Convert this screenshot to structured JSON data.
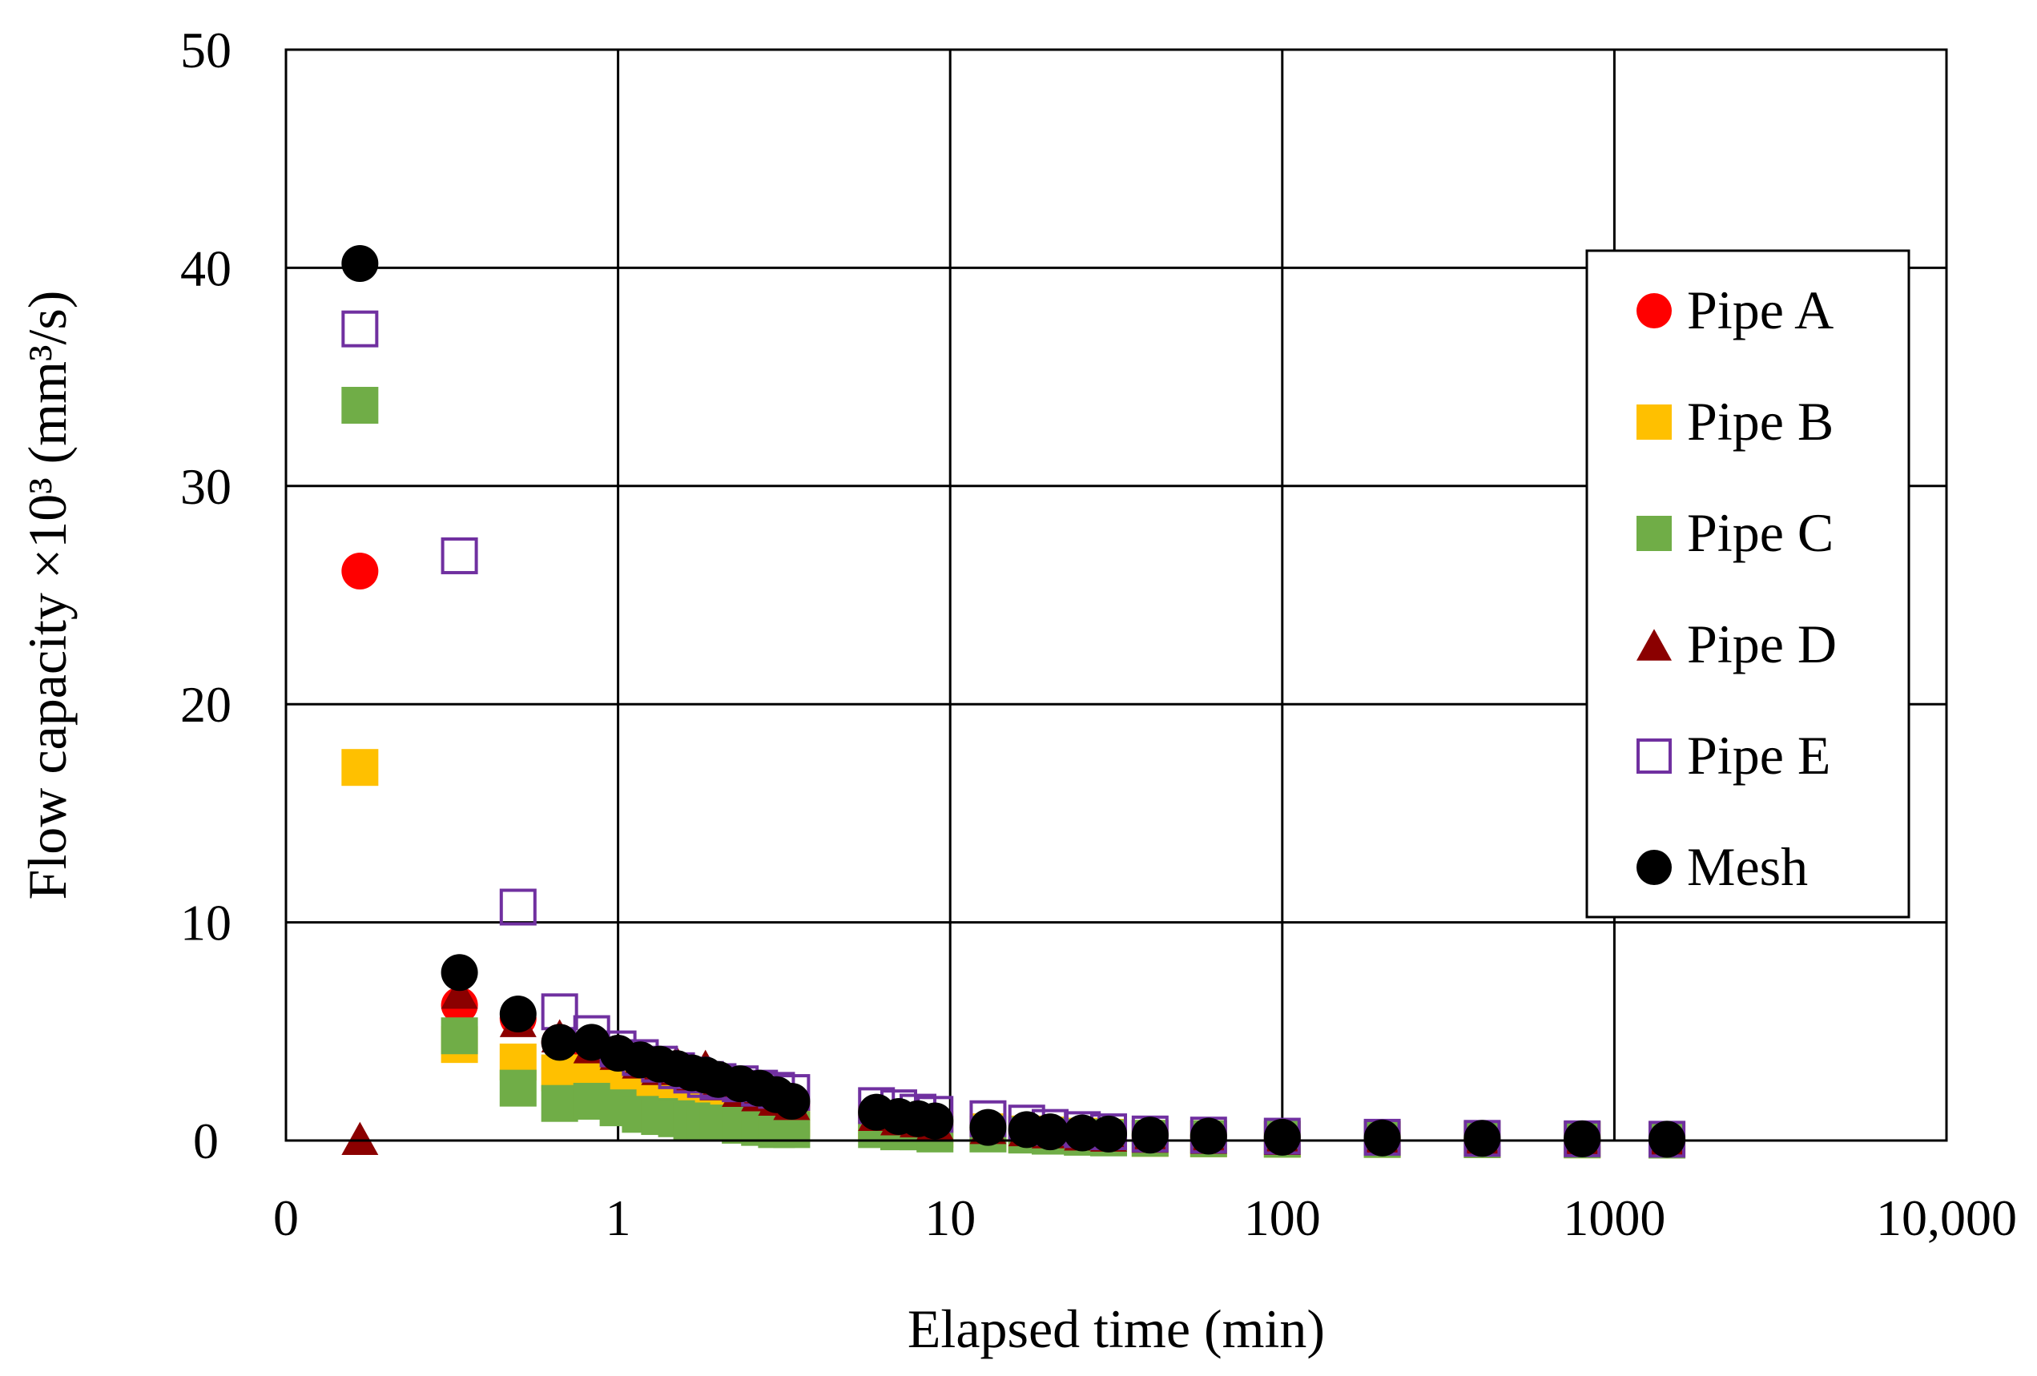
{
  "chart_data": {
    "type": "scatter",
    "title": "",
    "xlabel": "Elapsed time (min)",
    "ylabel": "Flow capacity  ×10³  (mm³/s)",
    "x_scale": "log",
    "x_tick_values": [
      0.1,
      1,
      10,
      100,
      1000,
      10000
    ],
    "x_tick_labels": [
      "0",
      "1",
      "10",
      "100",
      "1000",
      "10,000"
    ],
    "xlim": [
      0.1,
      10000
    ],
    "ylim": [
      0,
      50
    ],
    "y_ticks": [
      0,
      10,
      20,
      30,
      40,
      50
    ],
    "grid": true,
    "legend_position": "right",
    "series": [
      {
        "name": "Pipe A",
        "marker": "circle",
        "color": "#ff0000",
        "filled": true,
        "points": [
          [
            0.167,
            26.1
          ],
          [
            0.333,
            6.2
          ],
          [
            0.5,
            5.6
          ],
          [
            0.667,
            4.5
          ],
          [
            0.833,
            4.2
          ],
          [
            1.0,
            3.8
          ],
          [
            1.167,
            3.4
          ],
          [
            1.333,
            3.1
          ],
          [
            1.5,
            2.9
          ],
          [
            1.667,
            2.7
          ],
          [
            1.833,
            2.5
          ],
          [
            2.0,
            2.3
          ],
          [
            2.333,
            2.1
          ],
          [
            2.667,
            1.9
          ],
          [
            3.0,
            1.8
          ],
          [
            3.333,
            1.6
          ],
          [
            6.0,
            1.1
          ],
          [
            7.0,
            0.9
          ],
          [
            8.0,
            0.8
          ],
          [
            9.0,
            0.7
          ],
          [
            13.0,
            0.5
          ],
          [
            17.0,
            0.4
          ],
          [
            20.0,
            0.3
          ],
          [
            25.0,
            0.25
          ],
          [
            30.0,
            0.2
          ],
          [
            40.0,
            0.15
          ],
          [
            60.0,
            0.1
          ],
          [
            100.0,
            0.08
          ],
          [
            200.0,
            0.06
          ],
          [
            400.0,
            0.05
          ],
          [
            800.0,
            0.04
          ],
          [
            1440.0,
            0.03
          ]
        ]
      },
      {
        "name": "Pipe B",
        "marker": "square",
        "color": "#ffc000",
        "filled": true,
        "points": [
          [
            0.167,
            17.1
          ],
          [
            0.333,
            4.4
          ],
          [
            0.5,
            3.6
          ],
          [
            0.667,
            3.1
          ],
          [
            0.833,
            2.8
          ],
          [
            1.0,
            2.6
          ],
          [
            1.167,
            2.3
          ],
          [
            1.333,
            2.1
          ],
          [
            1.5,
            1.9
          ],
          [
            1.667,
            1.8
          ],
          [
            1.833,
            1.6
          ],
          [
            2.0,
            1.5
          ],
          [
            2.333,
            1.3
          ],
          [
            2.667,
            1.2
          ],
          [
            3.0,
            1.1
          ],
          [
            3.333,
            1.0
          ],
          [
            6.0,
            0.8
          ],
          [
            7.0,
            0.7
          ],
          [
            8.0,
            0.6
          ],
          [
            9.0,
            0.5
          ],
          [
            13.0,
            0.4
          ],
          [
            17.0,
            0.3
          ],
          [
            20.0,
            0.25
          ],
          [
            25.0,
            0.2
          ],
          [
            30.0,
            0.15
          ],
          [
            40.0,
            0.1
          ],
          [
            60.0,
            0.08
          ],
          [
            100.0,
            0.06
          ],
          [
            200.0,
            0.05
          ],
          [
            400.0,
            0.04
          ],
          [
            800.0,
            0.03
          ],
          [
            1440.0,
            0.02
          ]
        ]
      },
      {
        "name": "Pipe C",
        "marker": "square",
        "color": "#70ad47",
        "filled": true,
        "points": [
          [
            0.167,
            33.7
          ],
          [
            0.333,
            4.8
          ],
          [
            0.5,
            2.4
          ],
          [
            0.667,
            1.7
          ],
          [
            0.833,
            1.8
          ],
          [
            1.0,
            1.5
          ],
          [
            1.167,
            1.2
          ],
          [
            1.333,
            1.1
          ],
          [
            1.5,
            1.0
          ],
          [
            1.667,
            0.9
          ],
          [
            1.833,
            0.8
          ],
          [
            2.0,
            0.8
          ],
          [
            2.333,
            0.7
          ],
          [
            2.667,
            0.6
          ],
          [
            3.0,
            0.5
          ],
          [
            3.333,
            0.5
          ],
          [
            6.0,
            0.5
          ],
          [
            7.0,
            0.4
          ],
          [
            8.0,
            0.4
          ],
          [
            9.0,
            0.3
          ],
          [
            13.0,
            0.3
          ],
          [
            17.0,
            0.25
          ],
          [
            20.0,
            0.2
          ],
          [
            25.0,
            0.15
          ],
          [
            30.0,
            0.12
          ],
          [
            40.0,
            0.1
          ],
          [
            60.0,
            0.08
          ],
          [
            100.0,
            0.06
          ],
          [
            200.0,
            0.05
          ],
          [
            400.0,
            0.04
          ],
          [
            800.0,
            0.03
          ],
          [
            1440.0,
            0.02
          ]
        ]
      },
      {
        "name": "Pipe D",
        "marker": "triangle",
        "color": "#8b0000",
        "filled": true,
        "points": [
          [
            0.167,
            0.1
          ],
          [
            0.333,
            6.8
          ],
          [
            0.5,
            5.5
          ],
          [
            0.667,
            4.8
          ],
          [
            0.833,
            4.3
          ],
          [
            1.0,
            4.0
          ],
          [
            1.167,
            3.6
          ],
          [
            1.333,
            3.3
          ],
          [
            1.5,
            3.6
          ],
          [
            1.667,
            3.0
          ],
          [
            1.833,
            3.4
          ],
          [
            2.0,
            2.6
          ],
          [
            2.333,
            2.3
          ],
          [
            2.667,
            2.1
          ],
          [
            3.0,
            1.9
          ],
          [
            3.333,
            1.7
          ],
          [
            6.0,
            1.2
          ],
          [
            7.0,
            1.0
          ],
          [
            8.0,
            0.9
          ],
          [
            9.0,
            0.8
          ],
          [
            13.0,
            0.6
          ],
          [
            17.0,
            0.5
          ],
          [
            20.0,
            0.4
          ],
          [
            25.0,
            0.3
          ],
          [
            30.0,
            0.25
          ],
          [
            40.0,
            0.2
          ],
          [
            60.0,
            0.15
          ],
          [
            100.0,
            0.1
          ],
          [
            200.0,
            0.08
          ],
          [
            400.0,
            0.06
          ],
          [
            800.0,
            0.05
          ],
          [
            1440.0,
            0.04
          ]
        ]
      },
      {
        "name": "Pipe E",
        "marker": "square",
        "color": "#7030a0",
        "filled": false,
        "points": [
          [
            0.167,
            37.2
          ],
          [
            0.333,
            26.8
          ],
          [
            0.5,
            10.7
          ],
          [
            0.667,
            5.9
          ],
          [
            0.833,
            4.9
          ],
          [
            1.0,
            4.2
          ],
          [
            1.167,
            3.8
          ],
          [
            1.333,
            3.5
          ],
          [
            1.5,
            3.2
          ],
          [
            1.667,
            3.0
          ],
          [
            1.833,
            2.8
          ],
          [
            2.0,
            2.7
          ],
          [
            2.333,
            2.6
          ],
          [
            2.667,
            2.4
          ],
          [
            3.0,
            2.3
          ],
          [
            3.333,
            2.2
          ],
          [
            6.0,
            1.6
          ],
          [
            7.0,
            1.5
          ],
          [
            8.0,
            1.3
          ],
          [
            9.0,
            1.2
          ],
          [
            13.0,
            1.0
          ],
          [
            17.0,
            0.8
          ],
          [
            20.0,
            0.6
          ],
          [
            25.0,
            0.5
          ],
          [
            30.0,
            0.4
          ],
          [
            40.0,
            0.3
          ],
          [
            60.0,
            0.25
          ],
          [
            100.0,
            0.2
          ],
          [
            200.0,
            0.15
          ],
          [
            400.0,
            0.1
          ],
          [
            800.0,
            0.08
          ],
          [
            1440.0,
            0.06
          ]
        ]
      },
      {
        "name": "Mesh",
        "marker": "circle",
        "color": "#000000",
        "filled": true,
        "points": [
          [
            0.167,
            40.2
          ],
          [
            0.333,
            7.7
          ],
          [
            0.5,
            5.8
          ],
          [
            0.667,
            4.5
          ],
          [
            0.833,
            4.5
          ],
          [
            1.0,
            4.0
          ],
          [
            1.167,
            3.7
          ],
          [
            1.333,
            3.5
          ],
          [
            1.5,
            3.3
          ],
          [
            1.667,
            3.1
          ],
          [
            1.833,
            3.0
          ],
          [
            2.0,
            2.8
          ],
          [
            2.333,
            2.6
          ],
          [
            2.667,
            2.4
          ],
          [
            3.0,
            2.1
          ],
          [
            3.333,
            1.8
          ],
          [
            6.0,
            1.3
          ],
          [
            7.0,
            1.1
          ],
          [
            8.0,
            1.0
          ],
          [
            9.0,
            0.9
          ],
          [
            13.0,
            0.6
          ],
          [
            17.0,
            0.5
          ],
          [
            20.0,
            0.4
          ],
          [
            25.0,
            0.35
          ],
          [
            30.0,
            0.3
          ],
          [
            40.0,
            0.25
          ],
          [
            60.0,
            0.2
          ],
          [
            100.0,
            0.15
          ],
          [
            200.0,
            0.12
          ],
          [
            400.0,
            0.1
          ],
          [
            800.0,
            0.08
          ],
          [
            1440.0,
            0.06
          ]
        ]
      }
    ]
  }
}
